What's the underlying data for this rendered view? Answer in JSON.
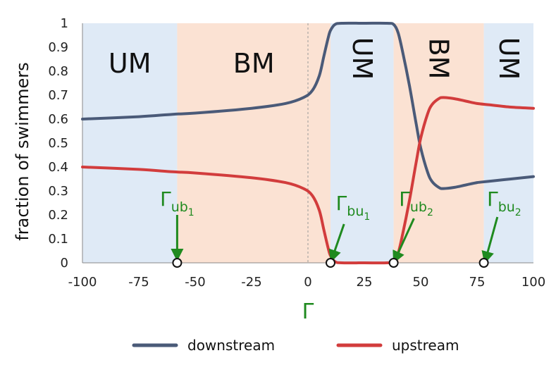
{
  "chart_data": {
    "type": "line",
    "title": "",
    "xlabel": "Γ",
    "ylabel": "fraction of swimmers",
    "xlim": [
      -100,
      100
    ],
    "ylim": [
      0,
      1
    ],
    "x_ticks": [
      "-100",
      "-75",
      "-50",
      "-25",
      "0",
      "25",
      "50",
      "75",
      "100"
    ],
    "y_ticks": [
      "0",
      "0.1",
      "0.2",
      "0.3",
      "0.4",
      "0.5",
      "0.6",
      "0.7",
      "0.8",
      "0.9",
      "1"
    ],
    "x_tick_values": [
      -100,
      -75,
      -50,
      -25,
      0,
      25,
      50,
      75,
      100
    ],
    "y_tick_values": [
      0,
      0.1,
      0.2,
      0.3,
      0.4,
      0.5,
      0.6,
      0.7,
      0.8,
      0.9,
      1
    ],
    "grid": false,
    "legend": "bottom",
    "regions": [
      {
        "label": "UM",
        "x0": -100,
        "x1": -58,
        "color": "#dfeaf6",
        "label_rotated": false
      },
      {
        "label": "BM",
        "x0": -58,
        "x1": 10,
        "color": "#fbe2d3",
        "label_rotated": false
      },
      {
        "label": "UM",
        "x0": 10,
        "x1": 38,
        "color": "#dfeaf6",
        "label_rotated": true
      },
      {
        "label": "BM",
        "x0": 38,
        "x1": 78,
        "color": "#fbe2d3",
        "label_rotated": true
      },
      {
        "label": "UM",
        "x0": 78,
        "x1": 100,
        "color": "#dfeaf6",
        "label_rotated": true
      }
    ],
    "series": [
      {
        "name": "downstream",
        "color": "#4a5a78",
        "x": [
          -100,
          -75,
          -60,
          -50,
          -25,
          -10,
          -2,
          2,
          5,
          7,
          9,
          10,
          12,
          15,
          25,
          35,
          38,
          40,
          42,
          45,
          48,
          50,
          53,
          55,
          58,
          60,
          65,
          70,
          75,
          80,
          90,
          100
        ],
        "y": [
          0.6,
          0.61,
          0.62,
          0.625,
          0.645,
          0.665,
          0.69,
          0.72,
          0.78,
          0.86,
          0.94,
          0.97,
          0.995,
          1.0,
          1.0,
          1.0,
          0.995,
          0.96,
          0.88,
          0.74,
          0.58,
          0.48,
          0.38,
          0.34,
          0.315,
          0.31,
          0.315,
          0.325,
          0.335,
          0.34,
          0.35,
          0.36
        ]
      },
      {
        "name": "upstream",
        "color": "#d23c3c",
        "x": [
          -100,
          -75,
          -60,
          -50,
          -25,
          -10,
          -2,
          2,
          5,
          7,
          9,
          10,
          12,
          15,
          25,
          35,
          38,
          40,
          42,
          45,
          48,
          50,
          53,
          55,
          58,
          60,
          65,
          70,
          75,
          80,
          90,
          100
        ],
        "y": [
          0.4,
          0.39,
          0.38,
          0.375,
          0.355,
          0.335,
          0.31,
          0.28,
          0.22,
          0.14,
          0.06,
          0.03,
          0.005,
          0.0,
          0.0,
          0.0,
          0.005,
          0.04,
          0.12,
          0.26,
          0.42,
          0.52,
          0.62,
          0.66,
          0.685,
          0.69,
          0.685,
          0.675,
          0.665,
          0.66,
          0.65,
          0.645
        ]
      }
    ],
    "annotations": [
      {
        "x": -58,
        "base": "Γ",
        "sub": "ub",
        "subsub": "1"
      },
      {
        "x": 10,
        "base": "Γ",
        "sub": "bu",
        "subsub": "1"
      },
      {
        "x": 38,
        "base": "Γ",
        "sub": "ub",
        "subsub": "2"
      },
      {
        "x": 78,
        "base": "Γ",
        "sub": "bu",
        "subsub": "2"
      }
    ]
  }
}
